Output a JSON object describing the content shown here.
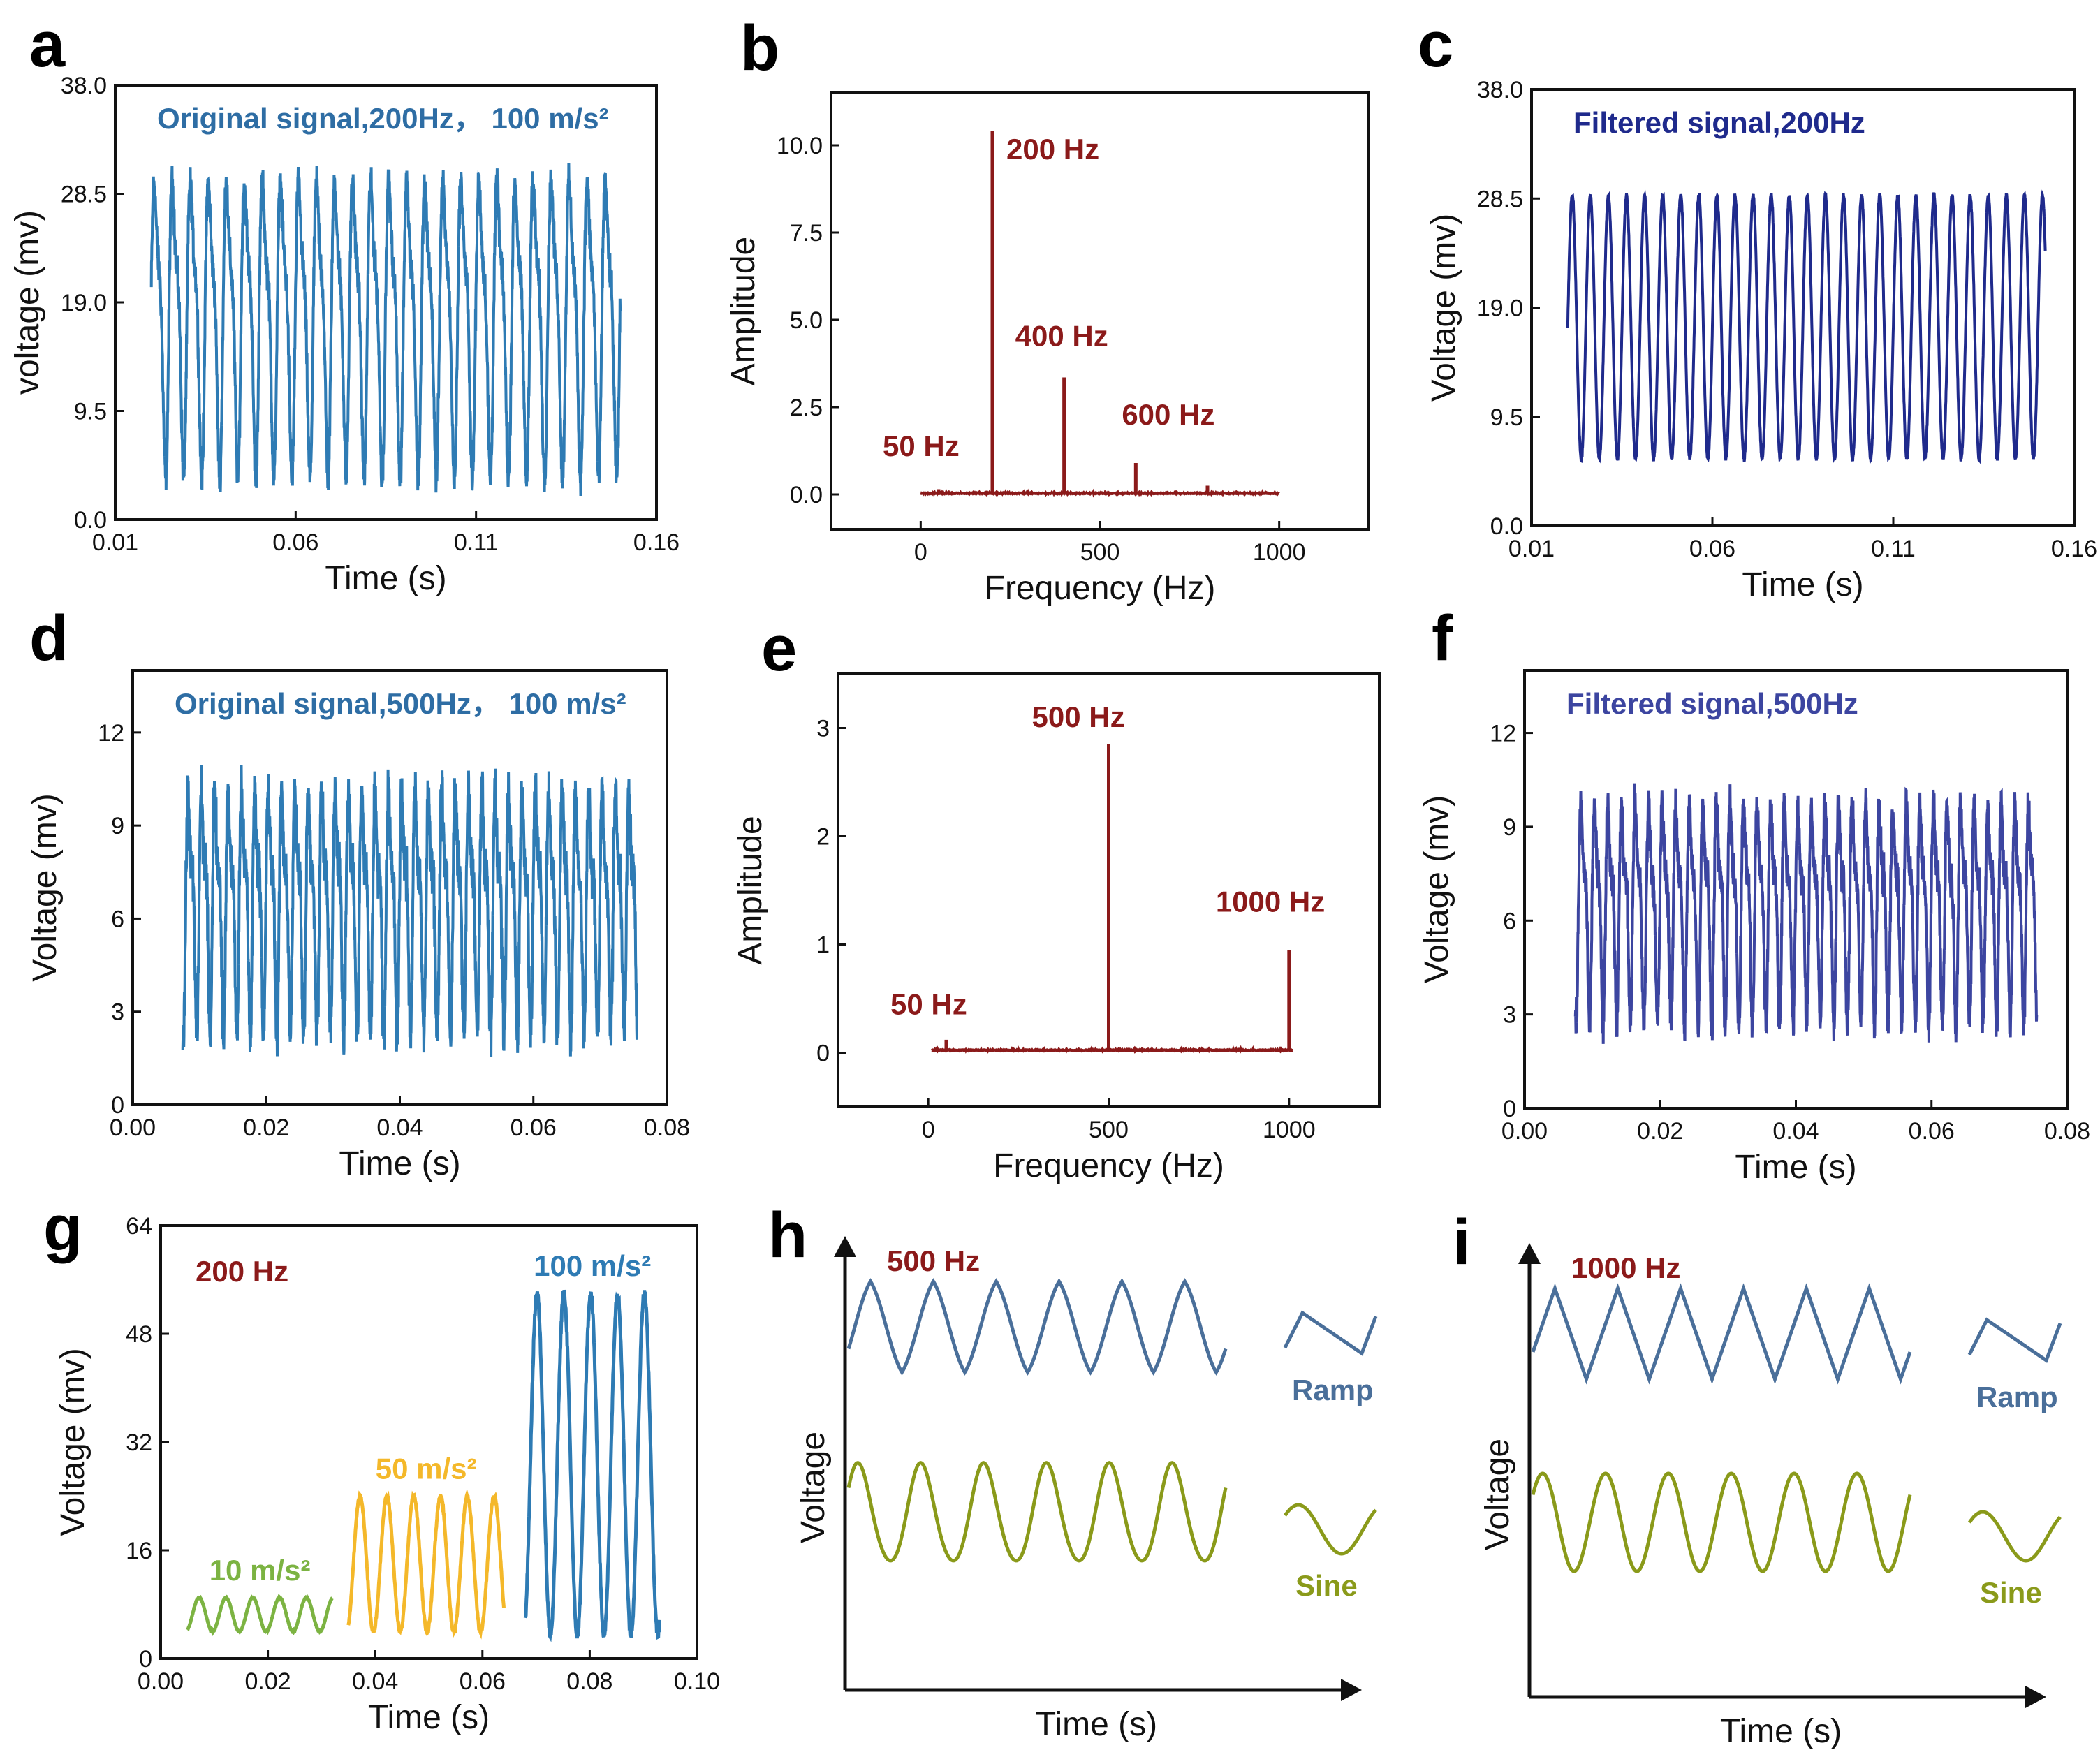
{
  "colors": {
    "blue": "#2e7bb4",
    "navy": "#1f2a8c",
    "indigo": "#3c45a0",
    "darkred": "#8b1a1a",
    "green": "#7cb342",
    "yellow": "#f4b82a",
    "ramp": "#4a6f9a",
    "sine": "#8a9a1a"
  },
  "chart_data": [
    {
      "id": "a",
      "panel_label": "a",
      "type": "line",
      "title": "Original signal,200Hz， 100 m/s²",
      "xlabel": "Time (s)",
      "ylabel": "voltage (mv)",
      "xlim": [
        0.01,
        0.16
      ],
      "ylim": [
        0.0,
        38.0
      ],
      "xticks": [
        "0.01",
        "0.06",
        "0.11",
        "0.16"
      ],
      "yticks": [
        "0.0",
        "9.5",
        "19.0",
        "28.5",
        "38.0"
      ],
      "signal": {
        "freq_hz": 200,
        "t_start": 0.02,
        "t_end": 0.15,
        "center": 18.0,
        "amplitude": 13.5,
        "noise": 2.2,
        "harmonic": 0.35
      }
    },
    {
      "id": "b",
      "panel_label": "b",
      "type": "line",
      "title": "",
      "xlabel": "Frequency (Hz)",
      "ylabel": "Amplitude",
      "xlim": [
        -250,
        1250
      ],
      "ylim": [
        -1.0,
        11.5
      ],
      "xticks": [
        "0",
        "500",
        "1000"
      ],
      "yticks": [
        "0.0",
        "2.5",
        "5.0",
        "7.5",
        "10.0"
      ],
      "peaks": [
        {
          "freq": 50,
          "value": 0.15,
          "label": "50 Hz"
        },
        {
          "freq": 200,
          "value": 10.4,
          "label": "200 Hz"
        },
        {
          "freq": 400,
          "value": 3.35,
          "label": "400 Hz"
        },
        {
          "freq": 600,
          "value": 0.9,
          "label": "600 Hz"
        },
        {
          "freq": 800,
          "value": 0.25,
          "label": ""
        }
      ],
      "spectrum_range": [
        0,
        1000
      ],
      "baseline": 0.02
    },
    {
      "id": "c",
      "panel_label": "c",
      "type": "line",
      "title": "Filtered signal,200Hz",
      "xlabel": "Time (s)",
      "ylabel": "Voltage (mv)",
      "xlim": [
        0.01,
        0.16
      ],
      "ylim": [
        0.0,
        38.0
      ],
      "xticks": [
        "0.01",
        "0.06",
        "0.11",
        "0.16"
      ],
      "yticks": [
        "0.0",
        "9.5",
        "19.0",
        "28.5",
        "38.0"
      ],
      "signal": {
        "freq_hz": 200,
        "t_start": 0.02,
        "t_end": 0.152,
        "center": 17.3,
        "amplitude": 11.5,
        "noise": 0.3,
        "harmonic": 0.0
      }
    },
    {
      "id": "d",
      "panel_label": "d",
      "type": "line",
      "title": "Original signal,500Hz， 100 m/s²",
      "xlabel": "Time (s)",
      "ylabel": "Voltage (mv)",
      "xlim": [
        0.0,
        0.08
      ],
      "ylim": [
        0,
        14
      ],
      "xticks": [
        "0.00",
        "0.02",
        "0.04",
        "0.06",
        "0.08"
      ],
      "yticks": [
        "0",
        "3",
        "6",
        "9",
        "12"
      ],
      "signal": {
        "freq_hz": 500,
        "t_start": 0.0075,
        "t_end": 0.0755,
        "center": 6.6,
        "amplitude": 4.0,
        "noise": 1.2,
        "harmonic": 0.45
      }
    },
    {
      "id": "e",
      "panel_label": "e",
      "type": "line",
      "title": "",
      "xlabel": "Frequency (Hz)",
      "ylabel": "Amplitude",
      "xlim": [
        -250,
        1250
      ],
      "ylim": [
        -0.5,
        3.5
      ],
      "xticks": [
        "0",
        "500",
        "1000"
      ],
      "yticks": [
        "0",
        "1",
        "2",
        "3"
      ],
      "peaks": [
        {
          "freq": 50,
          "value": 0.12,
          "label": "50 Hz"
        },
        {
          "freq": 500,
          "value": 2.85,
          "label": "500 Hz"
        },
        {
          "freq": 1000,
          "value": 0.95,
          "label": "1000 Hz"
        }
      ],
      "spectrum_range": [
        10,
        1010
      ],
      "baseline": 0.02
    },
    {
      "id": "f",
      "panel_label": "f",
      "type": "line",
      "title": "Filtered signal,500Hz",
      "xlabel": "Time (s)",
      "ylabel": "Voltage (mv)",
      "xlim": [
        0.0,
        0.08
      ],
      "ylim": [
        0,
        14
      ],
      "xticks": [
        "0.00",
        "0.02",
        "0.04",
        "0.06",
        "0.08"
      ],
      "yticks": [
        "0",
        "3",
        "6",
        "9",
        "12"
      ],
      "signal": {
        "freq_hz": 500,
        "t_start": 0.0075,
        "t_end": 0.0755,
        "center": 6.6,
        "amplitude": 3.6,
        "noise": 0.9,
        "harmonic": 0.45
      }
    },
    {
      "id": "g",
      "panel_label": "g",
      "type": "line",
      "title": "200 Hz",
      "xlabel": "Time (s)",
      "ylabel": "Voltage (mv)",
      "xlim": [
        0.0,
        0.1
      ],
      "ylim": [
        0,
        64
      ],
      "xticks": [
        "0.00",
        "0.02",
        "0.04",
        "0.06",
        "0.08",
        "0.10"
      ],
      "yticks": [
        "0",
        "16",
        "32",
        "48",
        "64"
      ],
      "series": [
        {
          "name": "10 m/s²",
          "color_key": "green",
          "t_start": 0.005,
          "t_end": 0.032,
          "min": 4.0,
          "max": 9.0
        },
        {
          "name": "50 m/s²",
          "color_key": "yellow",
          "t_start": 0.035,
          "t_end": 0.064,
          "min": 4.0,
          "max": 24.0
        },
        {
          "name": "100 m/s²",
          "color_key": "blue",
          "t_start": 0.068,
          "t_end": 0.093,
          "min": 3.5,
          "max": 54.0
        }
      ]
    },
    {
      "id": "h",
      "panel_label": "h",
      "type": "line",
      "title": "500 Hz",
      "xlabel": "Time (s)",
      "ylabel": "Voltage",
      "series": [
        {
          "name": "Ramp",
          "shape": "triangle",
          "cycles": 6
        },
        {
          "name": "Sine",
          "shape": "sine",
          "cycles": 6
        }
      ]
    },
    {
      "id": "i",
      "panel_label": "i",
      "type": "line",
      "title": "1000 Hz",
      "xlabel": "Time (s)",
      "ylabel": "Voltage",
      "series": [
        {
          "name": "Ramp",
          "shape": "triangle",
          "cycles": 6
        },
        {
          "name": "Sine",
          "shape": "sine",
          "cycles": 6
        }
      ]
    }
  ]
}
